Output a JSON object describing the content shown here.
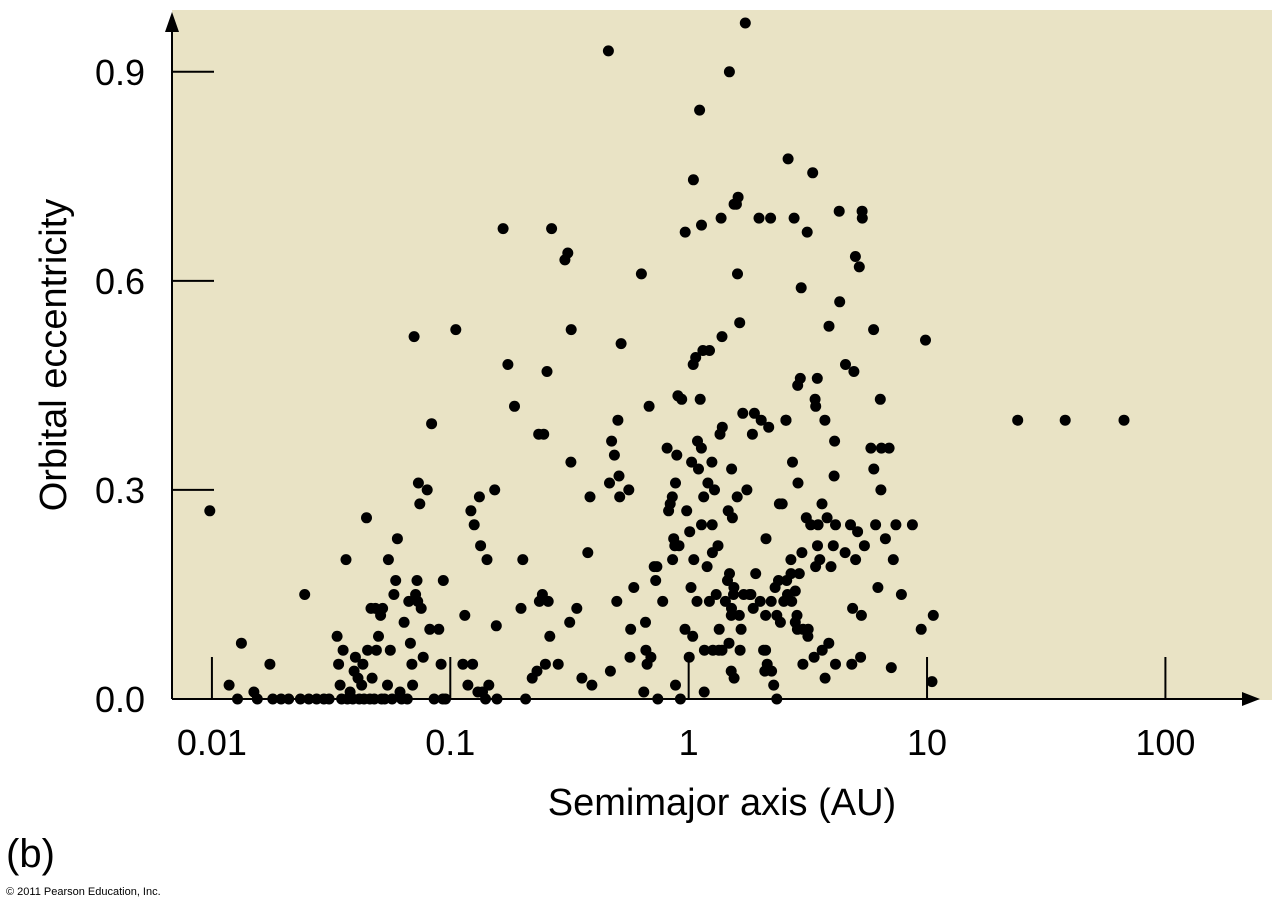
{
  "panel_label": "(b)",
  "credit": "© 2011 Pearson Education, Inc.",
  "chart_data": {
    "type": "scatter",
    "title": "",
    "xlabel": "Semimajor axis (AU)",
    "ylabel": "Orbital eccentricity",
    "xscale": "log",
    "xlim": [
      0.0068,
      280
    ],
    "ylim": [
      0,
      0.97
    ],
    "xticks": [
      {
        "value": 0.01,
        "label": "0.01"
      },
      {
        "value": 0.1,
        "label": "0.1"
      },
      {
        "value": 1,
        "label": "1"
      },
      {
        "value": 10,
        "label": "10"
      },
      {
        "value": 100,
        "label": "100"
      }
    ],
    "yticks": [
      {
        "value": 0,
        "label": "0.0"
      },
      {
        "value": 0.3,
        "label": "0.3"
      },
      {
        "value": 0.6,
        "label": "0.6"
      },
      {
        "value": 0.9,
        "label": "0.9"
      }
    ],
    "grid": false,
    "plot_background": "#e9e3c5",
    "marker_color": "#000000",
    "points": [
      [
        0.0098,
        0.27
      ],
      [
        0.0118,
        0.02
      ],
      [
        0.0128,
        0.0
      ],
      [
        0.0133,
        0.08
      ],
      [
        0.015,
        0.01
      ],
      [
        0.0155,
        0.0
      ],
      [
        0.0175,
        0.05
      ],
      [
        0.018,
        0.0
      ],
      [
        0.0195,
        0.0
      ],
      [
        0.021,
        0.0
      ],
      [
        0.0235,
        0.0
      ],
      [
        0.0245,
        0.15
      ],
      [
        0.0255,
        0.0
      ],
      [
        0.0275,
        0.0
      ],
      [
        0.0295,
        0.0
      ],
      [
        0.031,
        0.0
      ],
      [
        0.0335,
        0.09
      ],
      [
        0.034,
        0.05
      ],
      [
        0.0345,
        0.02
      ],
      [
        0.035,
        0.0
      ],
      [
        0.0355,
        0.07
      ],
      [
        0.0365,
        0.2
      ],
      [
        0.037,
        0.0
      ],
      [
        0.038,
        0.01
      ],
      [
        0.039,
        0.0
      ],
      [
        0.0395,
        0.04
      ],
      [
        0.04,
        0.06
      ],
      [
        0.041,
        0.03
      ],
      [
        0.0415,
        0.0
      ],
      [
        0.0425,
        0.02
      ],
      [
        0.043,
        0.05
      ],
      [
        0.0435,
        0.0
      ],
      [
        0.0445,
        0.26
      ],
      [
        0.045,
        0.07
      ],
      [
        0.046,
        0.0
      ],
      [
        0.0465,
        0.13
      ],
      [
        0.047,
        0.03
      ],
      [
        0.048,
        0.0
      ],
      [
        0.0485,
        0.13
      ],
      [
        0.049,
        0.07
      ],
      [
        0.05,
        0.09
      ],
      [
        0.051,
        0.12
      ],
      [
        0.0515,
        0.0
      ],
      [
        0.052,
        0.13
      ],
      [
        0.053,
        0.0
      ],
      [
        0.0545,
        0.02
      ],
      [
        0.055,
        0.2
      ],
      [
        0.056,
        0.07
      ],
      [
        0.057,
        0.0
      ],
      [
        0.058,
        0.15
      ],
      [
        0.059,
        0.17
      ],
      [
        0.06,
        0.23
      ],
      [
        0.0615,
        0.01
      ],
      [
        0.0625,
        0.0
      ],
      [
        0.064,
        0.11
      ],
      [
        0.066,
        0.0
      ],
      [
        0.067,
        0.14
      ],
      [
        0.068,
        0.08
      ],
      [
        0.069,
        0.05
      ],
      [
        0.0695,
        0.02
      ],
      [
        0.0705,
        0.52
      ],
      [
        0.0715,
        0.15
      ],
      [
        0.0725,
        0.17
      ],
      [
        0.073,
        0.14
      ],
      [
        0.0735,
        0.31
      ],
      [
        0.0745,
        0.28
      ],
      [
        0.0755,
        0.13
      ],
      [
        0.077,
        0.06
      ],
      [
        0.08,
        0.3
      ],
      [
        0.082,
        0.1
      ],
      [
        0.0835,
        0.395
      ],
      [
        0.0855,
        0.0
      ],
      [
        0.0895,
        0.1
      ],
      [
        0.0915,
        0.05
      ],
      [
        0.093,
        0.0
      ],
      [
        0.0935,
        0.17
      ],
      [
        0.0955,
        0.0
      ],
      [
        0.1055,
        0.53
      ],
      [
        0.113,
        0.05
      ],
      [
        0.115,
        0.12
      ],
      [
        0.1185,
        0.02
      ],
      [
        0.122,
        0.27
      ],
      [
        0.124,
        0.05
      ],
      [
        0.126,
        0.25
      ],
      [
        0.1305,
        0.01
      ],
      [
        0.1325,
        0.29
      ],
      [
        0.134,
        0.22
      ],
      [
        0.1365,
        0.01
      ],
      [
        0.1405,
        0.0
      ],
      [
        0.1425,
        0.2
      ],
      [
        0.145,
        0.02
      ],
      [
        0.1535,
        0.3
      ],
      [
        0.156,
        0.105
      ],
      [
        0.157,
        0.0
      ],
      [
        0.1665,
        0.675
      ],
      [
        0.1745,
        0.48
      ],
      [
        0.186,
        0.42
      ],
      [
        0.198,
        0.13
      ],
      [
        0.2015,
        0.2
      ],
      [
        0.207,
        0.0
      ],
      [
        0.2205,
        0.03
      ],
      [
        0.231,
        0.04
      ],
      [
        0.235,
        0.38
      ],
      [
        0.2365,
        0.14
      ],
      [
        0.2435,
        0.15
      ],
      [
        0.2465,
        0.38
      ],
      [
        0.2505,
        0.05
      ],
      [
        0.2545,
        0.47
      ],
      [
        0.2575,
        0.14
      ],
      [
        0.2615,
        0.09
      ],
      [
        0.266,
        0.675
      ],
      [
        0.2835,
        0.05
      ],
      [
        0.3025,
        0.63
      ],
      [
        0.311,
        0.64
      ],
      [
        0.317,
        0.11
      ],
      [
        0.3205,
        0.34
      ],
      [
        0.3215,
        0.53
      ],
      [
        0.3395,
        0.13
      ],
      [
        0.3565,
        0.03
      ],
      [
        0.3775,
        0.21
      ],
      [
        0.3855,
        0.29
      ],
      [
        0.3925,
        0.02
      ],
      [
        0.4605,
        0.93
      ],
      [
        0.4655,
        0.31
      ],
      [
        0.4695,
        0.04
      ],
      [
        0.475,
        0.37
      ],
      [
        0.488,
        0.35
      ],
      [
        0.4995,
        0.14
      ],
      [
        0.505,
        0.4
      ],
      [
        0.51,
        0.32
      ],
      [
        0.5135,
        0.29
      ],
      [
        0.5205,
        0.51
      ],
      [
        0.561,
        0.3
      ],
      [
        0.5675,
        0.06
      ],
      [
        0.5715,
        0.1
      ],
      [
        0.5885,
        0.16
      ],
      [
        0.6335,
        0.61
      ],
      [
        0.6485,
        0.01
      ],
      [
        0.659,
        0.11
      ],
      [
        0.6615,
        0.07
      ],
      [
        0.669,
        0.05
      ],
      [
        0.6825,
        0.42
      ],
      [
        0.6945,
        0.06
      ],
      [
        0.7165,
        0.19
      ],
      [
        0.727,
        0.17
      ],
      [
        0.7355,
        0.19
      ],
      [
        0.742,
        0.0
      ],
      [
        0.7785,
        0.14
      ],
      [
        0.812,
        0.36
      ],
      [
        0.824,
        0.27
      ],
      [
        0.8365,
        0.28
      ],
      [
        0.8535,
        0.29
      ],
      [
        0.8565,
        0.2
      ],
      [
        0.8655,
        0.23
      ],
      [
        0.875,
        0.22
      ],
      [
        0.8805,
        0.31
      ],
      [
        0.8805,
        0.02
      ],
      [
        0.8915,
        0.35
      ],
      [
        0.9015,
        0.435
      ],
      [
        0.911,
        0.22
      ],
      [
        0.923,
        0.0
      ],
      [
        0.9345,
        0.43
      ],
      [
        0.9675,
        0.67
      ],
      [
        0.9655,
        0.1
      ],
      [
        0.981,
        0.27
      ],
      [
        1.005,
        0.06
      ],
      [
        1.01,
        0.24
      ],
      [
        1.0225,
        0.16
      ],
      [
        1.029,
        0.34
      ],
      [
        1.04,
        0.09
      ],
      [
        1.045,
        0.48
      ],
      [
        1.0465,
        0.745
      ],
      [
        1.0505,
        0.2
      ],
      [
        1.0705,
        0.49
      ],
      [
        1.0835,
        0.14
      ],
      [
        1.0895,
        0.37
      ],
      [
        1.1,
        0.33
      ],
      [
        1.1115,
        0.845
      ],
      [
        1.1175,
        0.43
      ],
      [
        1.1305,
        0.36
      ],
      [
        1.1315,
        0.25
      ],
      [
        1.1325,
        0.68
      ],
      [
        1.1475,
        0.5
      ],
      [
        1.1565,
        0.29
      ],
      [
        1.1615,
        0.01
      ],
      [
        1.1645,
        0.07
      ],
      [
        1.195,
        0.19
      ],
      [
        1.2045,
        0.31
      ],
      [
        1.2215,
        0.14
      ],
      [
        1.2225,
        0.5
      ],
      [
        1.2515,
        0.34
      ],
      [
        1.255,
        0.25
      ],
      [
        1.2575,
        0.21
      ],
      [
        1.2635,
        0.07
      ],
      [
        1.283,
        0.3
      ],
      [
        1.305,
        0.15
      ],
      [
        1.3275,
        0.22
      ],
      [
        1.3395,
        0.07
      ],
      [
        1.3435,
        0.1
      ],
      [
        1.3535,
        0.38
      ],
      [
        1.3685,
        0.69
      ],
      [
        1.3805,
        0.07
      ],
      [
        1.3805,
        0.52
      ],
      [
        1.384,
        0.39
      ],
      [
        1.4255,
        0.14
      ],
      [
        1.455,
        0.17
      ],
      [
        1.4655,
        0.27
      ],
      [
        1.4765,
        0.08
      ],
      [
        1.483,
        0.18
      ],
      [
        1.4825,
        0.9
      ],
      [
        1.5125,
        0.13
      ],
      [
        1.5095,
        0.12
      ],
      [
        1.5085,
        0.04
      ],
      [
        1.5145,
        0.33
      ],
      [
        1.5255,
        0.26
      ],
      [
        1.5425,
        0.15
      ],
      [
        1.5485,
        0.16
      ],
      [
        1.5515,
        0.03
      ],
      [
        1.5515,
        0.71
      ],
      [
        1.5855,
        0.71
      ],
      [
        1.5975,
        0.29
      ],
      [
        1.6025,
        0.61
      ],
      [
        1.6125,
        0.72
      ],
      [
        1.6305,
        0.12
      ],
      [
        1.6365,
        0.54
      ],
      [
        1.6435,
        0.07
      ],
      [
        1.6595,
        0.1
      ],
      [
        1.6865,
        0.41
      ],
      [
        1.7015,
        0.15
      ],
      [
        1.7275,
        0.97
      ],
      [
        1.7545,
        0.3
      ],
      [
        1.8015,
        0.15
      ],
      [
        1.8245,
        0.15
      ],
      [
        1.8515,
        0.38
      ],
      [
        1.8655,
        0.13
      ],
      [
        1.8865,
        0.41
      ],
      [
        1.9115,
        0.18
      ],
      [
        1.9725,
        0.69
      ],
      [
        1.9955,
        0.14
      ],
      [
        2.0155,
        0.4
      ],
      [
        2.0625,
        0.07
      ],
      [
        2.0855,
        0.04
      ],
      [
        2.1025,
        0.07
      ],
      [
        2.1025,
        0.12
      ],
      [
        2.1105,
        0.23
      ],
      [
        2.1345,
        0.05
      ],
      [
        2.1665,
        0.39
      ],
      [
        2.2075,
        0.69
      ],
      [
        2.2195,
        0.14
      ],
      [
        2.2285,
        0.04
      ],
      [
        2.2745,
        0.02
      ],
      [
        2.3055,
        0.16
      ],
      [
        2.3425,
        0.0
      ],
      [
        2.3435,
        0.12
      ],
      [
        2.3825,
        0.17
      ],
      [
        2.4015,
        0.28
      ],
      [
        2.4265,
        0.11
      ],
      [
        2.4675,
        0.28
      ],
      [
        2.5055,
        0.14
      ],
      [
        2.5575,
        0.4
      ],
      [
        2.5595,
        0.4
      ],
      [
        2.5785,
        0.17
      ],
      [
        2.5975,
        0.15
      ],
      [
        2.6125,
        0.775
      ],
      [
        2.6835,
        0.2
      ],
      [
        2.6865,
        0.18
      ],
      [
        2.7055,
        0.14
      ],
      [
        2.7255,
        0.34
      ],
      [
        2.7685,
        0.69
      ],
      [
        2.8015,
        0.11
      ],
      [
        2.8025,
        0.155
      ],
      [
        2.8485,
        0.12
      ],
      [
        2.8585,
        0.1
      ],
      [
        2.8675,
        0.45
      ],
      [
        2.8755,
        0.31
      ],
      [
        2.9125,
        0.18
      ],
      [
        2.9385,
        0.46
      ],
      [
        2.9665,
        0.59
      ],
      [
        2.9845,
        0.21
      ],
      [
        3.0145,
        0.05
      ],
      [
        3.0175,
        0.1
      ],
      [
        3.1145,
        0.26
      ],
      [
        3.1425,
        0.67
      ],
      [
        3.1625,
        0.09
      ],
      [
        3.1725,
        0.1
      ],
      [
        3.2505,
        0.25
      ],
      [
        3.3125,
        0.755
      ],
      [
        3.3595,
        0.06
      ],
      [
        3.3915,
        0.43
      ],
      [
        3.4065,
        0.19
      ],
      [
        3.4125,
        0.42
      ],
      [
        3.4635,
        0.46
      ],
      [
        3.4725,
        0.22
      ],
      [
        3.4915,
        0.25
      ],
      [
        3.5505,
        0.2
      ],
      [
        3.6255,
        0.28
      ],
      [
        3.6325,
        0.07
      ],
      [
        3.7275,
        0.4
      ],
      [
        3.7345,
        0.03
      ],
      [
        3.8075,
        0.26
      ],
      [
        3.8715,
        0.08
      ],
      [
        3.8795,
        0.535
      ],
      [
        3.9545,
        0.19
      ],
      [
        4.0425,
        0.22
      ],
      [
        4.0765,
        0.32
      ],
      [
        4.0955,
        0.37
      ],
      [
        4.1285,
        0.25
      ],
      [
        4.1305,
        0.05
      ],
      [
        4.2815,
        0.7
      ],
      [
        4.3025,
        0.57
      ],
      [
        4.5335,
        0.21
      ],
      [
        4.5475,
        0.48
      ],
      [
        4.7725,
        0.25
      ],
      [
        4.8355,
        0.05
      ],
      [
        4.8715,
        0.13
      ],
      [
        4.9315,
        0.47
      ],
      [
        5.0055,
        0.635
      ],
      [
        5.0155,
        0.2
      ],
      [
        5.1125,
        0.24
      ],
      [
        5.1955,
        0.62
      ],
      [
        5.2615,
        0.06
      ],
      [
        5.3025,
        0.12
      ],
      [
        5.3415,
        0.7
      ],
      [
        5.3505,
        0.69
      ],
      [
        5.4625,
        0.22
      ],
      [
        5.8125,
        0.36
      ],
      [
        5.9685,
        0.53
      ],
      [
        5.9775,
        0.33
      ],
      [
        6.0865,
        0.25
      ],
      [
        6.2215,
        0.16
      ],
      [
        6.4375,
        0.36
      ],
      [
        6.3655,
        0.43
      ],
      [
        6.4045,
        0.3
      ],
      [
        6.6895,
        0.23
      ],
      [
        6.9295,
        0.36
      ],
      [
        7.0815,
        0.045
      ],
      [
        7.2215,
        0.2
      ],
      [
        7.4045,
        0.25
      ],
      [
        7.8055,
        0.15
      ],
      [
        8.6785,
        0.25
      ],
      [
        9.4505,
        0.1
      ],
      [
        9.8505,
        0.515
      ],
      [
        10.62,
        0.12
      ],
      [
        10.49,
        0.025
      ],
      [
        24.0,
        0.4
      ],
      [
        38.0,
        0.4
      ],
      [
        67.0,
        0.4
      ]
    ]
  }
}
